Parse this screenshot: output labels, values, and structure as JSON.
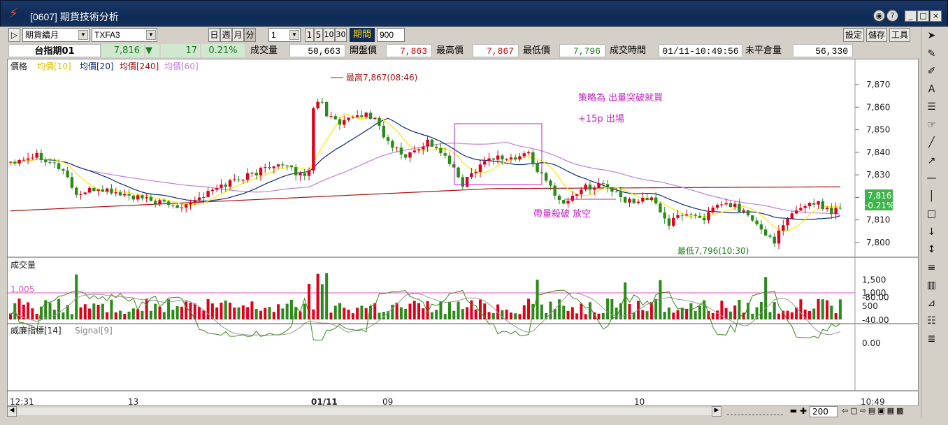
{
  "window": {
    "title": "[0607] 期貨技術分析",
    "buttons": [
      "?",
      "_",
      "□",
      "×"
    ]
  },
  "toolbar": {
    "type": "期貨續月",
    "symbol": "TXFA3",
    "period_buttons": [
      "日",
      "週",
      "月",
      "分"
    ],
    "interval": "1",
    "interval_buttons": [
      "1",
      "5",
      "10",
      "30"
    ],
    "period_label": "期間",
    "period_value": "900",
    "settings": "設定",
    "save": "儲存",
    "tools": "工具"
  },
  "quote": {
    "name": "台指期01",
    "last": "7,816",
    "arrow": "▼",
    "change": "17",
    "pct": "0.21%",
    "vol_label": "成交量",
    "vol": "50,663",
    "open_label": "開盤價",
    "open": "7,863",
    "high_label": "最高價",
    "high": "7,867",
    "low_label": "最低價",
    "low": "7,796",
    "time_label": "成交時間",
    "time": "01/11-10:49:56",
    "oi_label": "未平倉量",
    "oi": "56,330"
  },
  "colors": {
    "up": "#e0001a",
    "down": "#2a8a1a",
    "ma10": "#ffe800",
    "ma20": "#0a2a80",
    "ma240": "#b01010",
    "ma60": "#c080d8",
    "vol_line": "#e050c0",
    "annot": "#c020c0",
    "high_annot": "#b01010",
    "low_annot": "#207a20"
  },
  "chart_data": [
    {
      "type": "candlestick",
      "panel": "price",
      "legend": [
        "價格",
        "均價[10]",
        "均價[20]",
        "均價[240]",
        "均價[60]"
      ],
      "yticks": [
        7800,
        7810,
        7820,
        7830,
        7840,
        7850,
        7860,
        7870
      ],
      "ylim": [
        7795,
        7875
      ],
      "last_label": [
        "7,816",
        "-0.21%"
      ],
      "annotations": {
        "high": "最高7,867(08:46)",
        "low": "最低7,796(10:30)",
        "strategy": "策略為 出量突破就買",
        "exit": "+15p 出場",
        "short": "帶量殺破 放空"
      },
      "path": [
        [
          0,
          7836
        ],
        [
          6,
          7839
        ],
        [
          9,
          7836
        ],
        [
          12,
          7832
        ],
        [
          14,
          7825
        ],
        [
          15,
          7821
        ],
        [
          20,
          7824
        ],
        [
          28,
          7820
        ],
        [
          33,
          7818
        ],
        [
          38,
          7816
        ],
        [
          43,
          7820
        ],
        [
          50,
          7827
        ],
        [
          56,
          7831
        ],
        [
          60,
          7835
        ],
        [
          63,
          7833
        ],
        [
          66,
          7830
        ],
        [
          68,
          7831
        ],
        [
          69,
          7861
        ],
        [
          71,
          7863
        ],
        [
          72,
          7857
        ],
        [
          75,
          7852
        ],
        [
          80,
          7857
        ],
        [
          83,
          7855
        ],
        [
          86,
          7844
        ],
        [
          90,
          7838
        ],
        [
          95,
          7845
        ],
        [
          98,
          7840
        ],
        [
          100,
          7835
        ],
        [
          103,
          7826
        ],
        [
          107,
          7835
        ],
        [
          110,
          7838
        ],
        [
          115,
          7837
        ],
        [
          118,
          7840
        ],
        [
          120,
          7832
        ],
        [
          124,
          7822
        ],
        [
          126,
          7817
        ],
        [
          130,
          7824
        ],
        [
          135,
          7826
        ],
        [
          140,
          7818
        ],
        [
          145,
          7820
        ],
        [
          147,
          7817
        ],
        [
          150,
          7808
        ],
        [
          153,
          7813
        ],
        [
          158,
          7811
        ],
        [
          162,
          7817
        ],
        [
          165,
          7816
        ],
        [
          168,
          7812
        ],
        [
          171,
          7805
        ],
        [
          174,
          7801
        ],
        [
          177,
          7810
        ],
        [
          180,
          7816
        ],
        [
          183,
          7818
        ],
        [
          187,
          7814
        ],
        [
          189,
          7816
        ]
      ]
    },
    {
      "type": "bar",
      "panel": "volume",
      "legend": [
        "成交量"
      ],
      "yticks": [
        500,
        1000,
        1500
      ],
      "ylim": [
        0,
        1800
      ],
      "reference": "1,005",
      "reference_value": 1005
    },
    {
      "type": "line",
      "panel": "williams",
      "legend": [
        "威廉指標[14]",
        "Signal[9]"
      ],
      "yticks": [
        "0.00",
        "-40.00",
        "-80.00"
      ],
      "ylim": [
        -100,
        0
      ]
    }
  ],
  "xaxis": {
    "labels": [
      "12:31",
      "13",
      "01/11",
      "09",
      "10",
      "10:49"
    ]
  },
  "scrollbar": {
    "zoom": "200"
  }
}
